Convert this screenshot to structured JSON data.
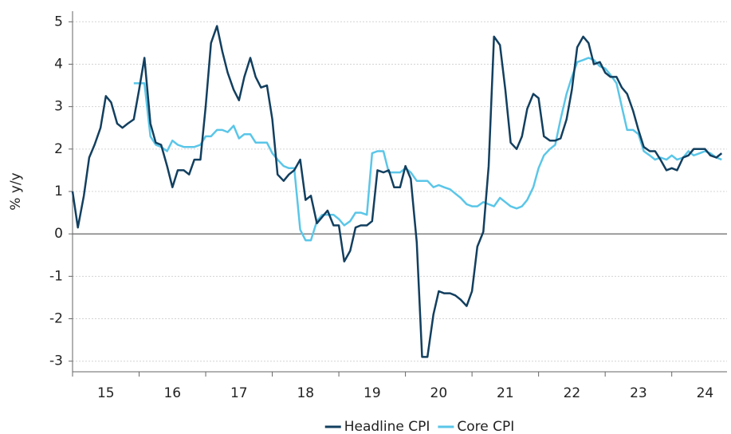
{
  "chart_data": {
    "type": "line",
    "ylabel": "% y/y",
    "xlim": [
      15,
      24.83
    ],
    "ylim": [
      -3.25,
      5.25
    ],
    "xticks": [
      15,
      16,
      17,
      18,
      19,
      20,
      21,
      22,
      23,
      24
    ],
    "yticks": [
      -3,
      -2,
      -1,
      0,
      1,
      2,
      3,
      4,
      5
    ],
    "grid": true,
    "legend": "bottom",
    "x": [
      15.0,
      15.08,
      15.17,
      15.25,
      15.33,
      15.42,
      15.5,
      15.58,
      15.67,
      15.75,
      15.83,
      15.92,
      16.0,
      16.08,
      16.17,
      16.25,
      16.33,
      16.42,
      16.5,
      16.58,
      16.67,
      16.75,
      16.83,
      16.92,
      17.0,
      17.08,
      17.17,
      17.25,
      17.33,
      17.42,
      17.5,
      17.58,
      17.67,
      17.75,
      17.83,
      17.92,
      18.0,
      18.08,
      18.17,
      18.25,
      18.33,
      18.42,
      18.5,
      18.58,
      18.67,
      18.75,
      18.83,
      18.92,
      19.0,
      19.08,
      19.17,
      19.25,
      19.33,
      19.42,
      19.5,
      19.58,
      19.67,
      19.75,
      19.83,
      19.92,
      20.0,
      20.08,
      20.17,
      20.25,
      20.33,
      20.42,
      20.5,
      20.58,
      20.67,
      20.75,
      20.83,
      20.92,
      21.0,
      21.08,
      21.17,
      21.25,
      21.33,
      21.42,
      21.5,
      21.58,
      21.67,
      21.75,
      21.83,
      21.92,
      22.0,
      22.08,
      22.17,
      22.25,
      22.33,
      22.42,
      22.5,
      22.58,
      22.67,
      22.75,
      22.83,
      22.92,
      23.0,
      23.08,
      23.17,
      23.25,
      23.33,
      23.42,
      23.5,
      23.58,
      23.67,
      23.75,
      23.83,
      23.92,
      24.0,
      24.08,
      24.17,
      24.25,
      24.33,
      24.42,
      24.5,
      24.58,
      24.67,
      24.75
    ],
    "series": [
      {
        "name": "Headline CPI",
        "color": "#123f5f",
        "values": [
          1.0,
          0.15,
          0.9,
          1.8,
          2.1,
          2.5,
          3.25,
          3.1,
          2.6,
          2.5,
          2.6,
          2.7,
          3.4,
          4.15,
          2.6,
          2.15,
          2.1,
          1.6,
          1.1,
          1.5,
          1.5,
          1.4,
          1.75,
          1.75,
          3.0,
          4.5,
          4.9,
          4.3,
          3.8,
          3.4,
          3.15,
          3.7,
          4.15,
          3.7,
          3.45,
          3.5,
          2.7,
          1.4,
          1.25,
          1.4,
          1.5,
          1.75,
          0.8,
          0.9,
          0.25,
          0.4,
          0.55,
          0.2,
          0.2,
          -0.65,
          -0.4,
          0.15,
          0.2,
          0.2,
          0.3,
          1.5,
          1.45,
          1.5,
          1.1,
          1.1,
          1.6,
          1.3,
          -0.2,
          -2.9,
          -2.9,
          -1.9,
          -1.35,
          -1.4,
          -1.4,
          -1.45,
          -1.55,
          -1.7,
          -1.35,
          -0.3,
          0.05,
          1.6,
          4.65,
          4.45,
          3.4,
          2.15,
          2.0,
          2.3,
          2.95,
          3.3,
          3.2,
          2.3,
          2.2,
          2.2,
          2.25,
          2.7,
          3.4,
          4.4,
          4.65,
          4.5,
          4.0,
          4.05,
          3.8,
          3.7,
          3.7,
          3.45,
          3.3,
          2.9,
          2.45,
          2.05,
          1.95,
          1.95,
          1.75,
          1.5,
          1.55,
          1.5,
          1.8,
          1.85,
          2.0,
          2.0,
          2.0,
          1.85,
          1.8,
          1.9
        ]
      },
      {
        "name": "Core CPI",
        "color": "#5ac6e8",
        "values": [
          null,
          null,
          null,
          null,
          null,
          null,
          null,
          null,
          null,
          null,
          null,
          3.55,
          3.55,
          3.55,
          2.3,
          2.1,
          2.05,
          1.95,
          2.2,
          2.1,
          2.05,
          2.05,
          2.05,
          2.1,
          2.3,
          2.3,
          2.45,
          2.45,
          2.4,
          2.55,
          2.25,
          2.35,
          2.35,
          2.15,
          2.15,
          2.15,
          1.9,
          1.75,
          1.6,
          1.55,
          1.55,
          0.1,
          -0.15,
          -0.15,
          0.3,
          0.45,
          0.45,
          0.45,
          0.35,
          0.2,
          0.3,
          0.5,
          0.5,
          0.45,
          1.9,
          1.95,
          1.95,
          1.45,
          1.45,
          1.45,
          1.55,
          1.45,
          1.25,
          1.25,
          1.25,
          1.1,
          1.15,
          1.1,
          1.05,
          0.95,
          0.85,
          0.7,
          0.65,
          0.65,
          0.75,
          0.7,
          0.65,
          0.85,
          0.75,
          0.65,
          0.6,
          0.65,
          0.8,
          1.1,
          1.55,
          1.85,
          2.0,
          2.1,
          2.7,
          3.3,
          3.7,
          4.05,
          4.1,
          4.15,
          4.1,
          3.95,
          3.9,
          3.75,
          3.55,
          3.0,
          2.45,
          2.45,
          2.35,
          1.95,
          1.85,
          1.75,
          1.8,
          1.75,
          1.85,
          1.75,
          1.8,
          1.95,
          1.85,
          1.9,
          1.95,
          1.9,
          1.8,
          1.75
        ]
      }
    ]
  }
}
